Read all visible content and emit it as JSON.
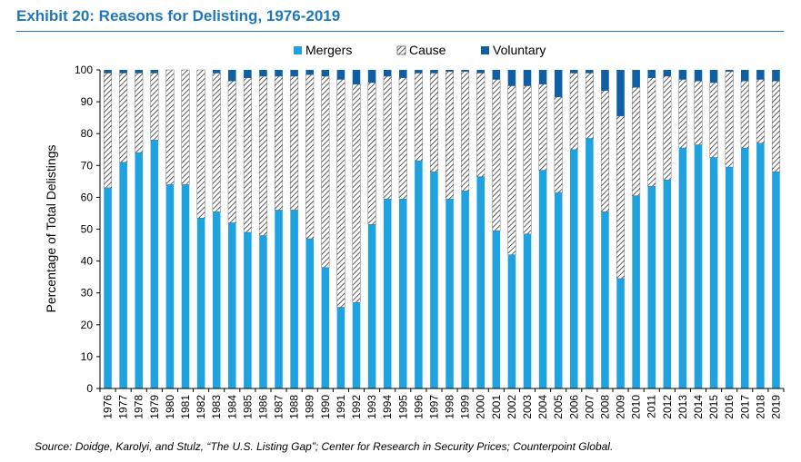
{
  "header": {
    "title": "Exhibit 20: Reasons for Delisting, 1976-2019"
  },
  "footer": {
    "source": "Source: Doidge, Karolyi, and Stulz, “The U.S. Listing Gap”; Center for Research in Security Prices; Counterpoint Global."
  },
  "colors": {
    "title": "#1f78b9",
    "mergers": "#1fa3e0",
    "voluntary": "#0e5fa3",
    "cause_stripe": "#333333",
    "axis": "#000000"
  },
  "chart_data": {
    "type": "bar",
    "stacked": true,
    "title": "Exhibit 20: Reasons for Delisting, 1976-2019",
    "xlabel": "",
    "ylabel": "Percentage of Total Delistings",
    "ylim": [
      0,
      100
    ],
    "yticks": [
      0,
      10,
      20,
      30,
      40,
      50,
      60,
      70,
      80,
      90,
      100
    ],
    "legend_position": "top-center",
    "categories": [
      "1976",
      "1977",
      "1978",
      "1979",
      "1980",
      "1981",
      "1982",
      "1983",
      "1984",
      "1985",
      "1986",
      "1987",
      "1988",
      "1989",
      "1990",
      "1991",
      "1992",
      "1993",
      "1994",
      "1995",
      "1996",
      "1997",
      "1998",
      "1999",
      "2000",
      "2001",
      "2002",
      "2003",
      "2004",
      "2005",
      "2006",
      "2007",
      "2008",
      "2009",
      "2010",
      "2011",
      "2012",
      "2013",
      "2014",
      "2015",
      "2016",
      "2017",
      "2018",
      "2019"
    ],
    "series": [
      {
        "name": "Mergers",
        "values": [
          63,
          71,
          74,
          78,
          64,
          64,
          53.5,
          55.5,
          52,
          49,
          48,
          56,
          56,
          47,
          38,
          25.5,
          27,
          51.5,
          59.5,
          59.5,
          71.5,
          68,
          59.5,
          62,
          66.5,
          49.5,
          42,
          48.5,
          68.5,
          61.5,
          75,
          78.5,
          55.5,
          34.5,
          60.5,
          63.5,
          65.5,
          75.5,
          76.5,
          72.5,
          69.5,
          75.5,
          77,
          68
        ]
      },
      {
        "name": "Cause",
        "values": [
          36,
          28,
          25,
          21,
          36,
          36,
          46.5,
          43.5,
          44.5,
          48.5,
          50,
          42,
          42,
          51.5,
          60,
          71.5,
          68.5,
          44.5,
          38.5,
          38,
          27.5,
          31,
          40,
          37.5,
          32.5,
          47.5,
          53,
          46.5,
          27,
          30,
          24,
          20.5,
          38,
          51,
          34,
          34,
          32.5,
          21.5,
          20,
          23.5,
          30,
          21,
          20,
          28.5
        ]
      },
      {
        "name": "Voluntary",
        "values": [
          1,
          1,
          1,
          1,
          0,
          0,
          0,
          1,
          3.5,
          2.5,
          2,
          2,
          2,
          1.5,
          2,
          3,
          4.5,
          4,
          2,
          2.5,
          1,
          1,
          0.5,
          0.5,
          1,
          3,
          5,
          5,
          4.5,
          8.5,
          1,
          1,
          6.5,
          14.5,
          5.5,
          2.5,
          2,
          3,
          3.5,
          4,
          0.5,
          3.5,
          3,
          3.5
        ]
      }
    ]
  }
}
